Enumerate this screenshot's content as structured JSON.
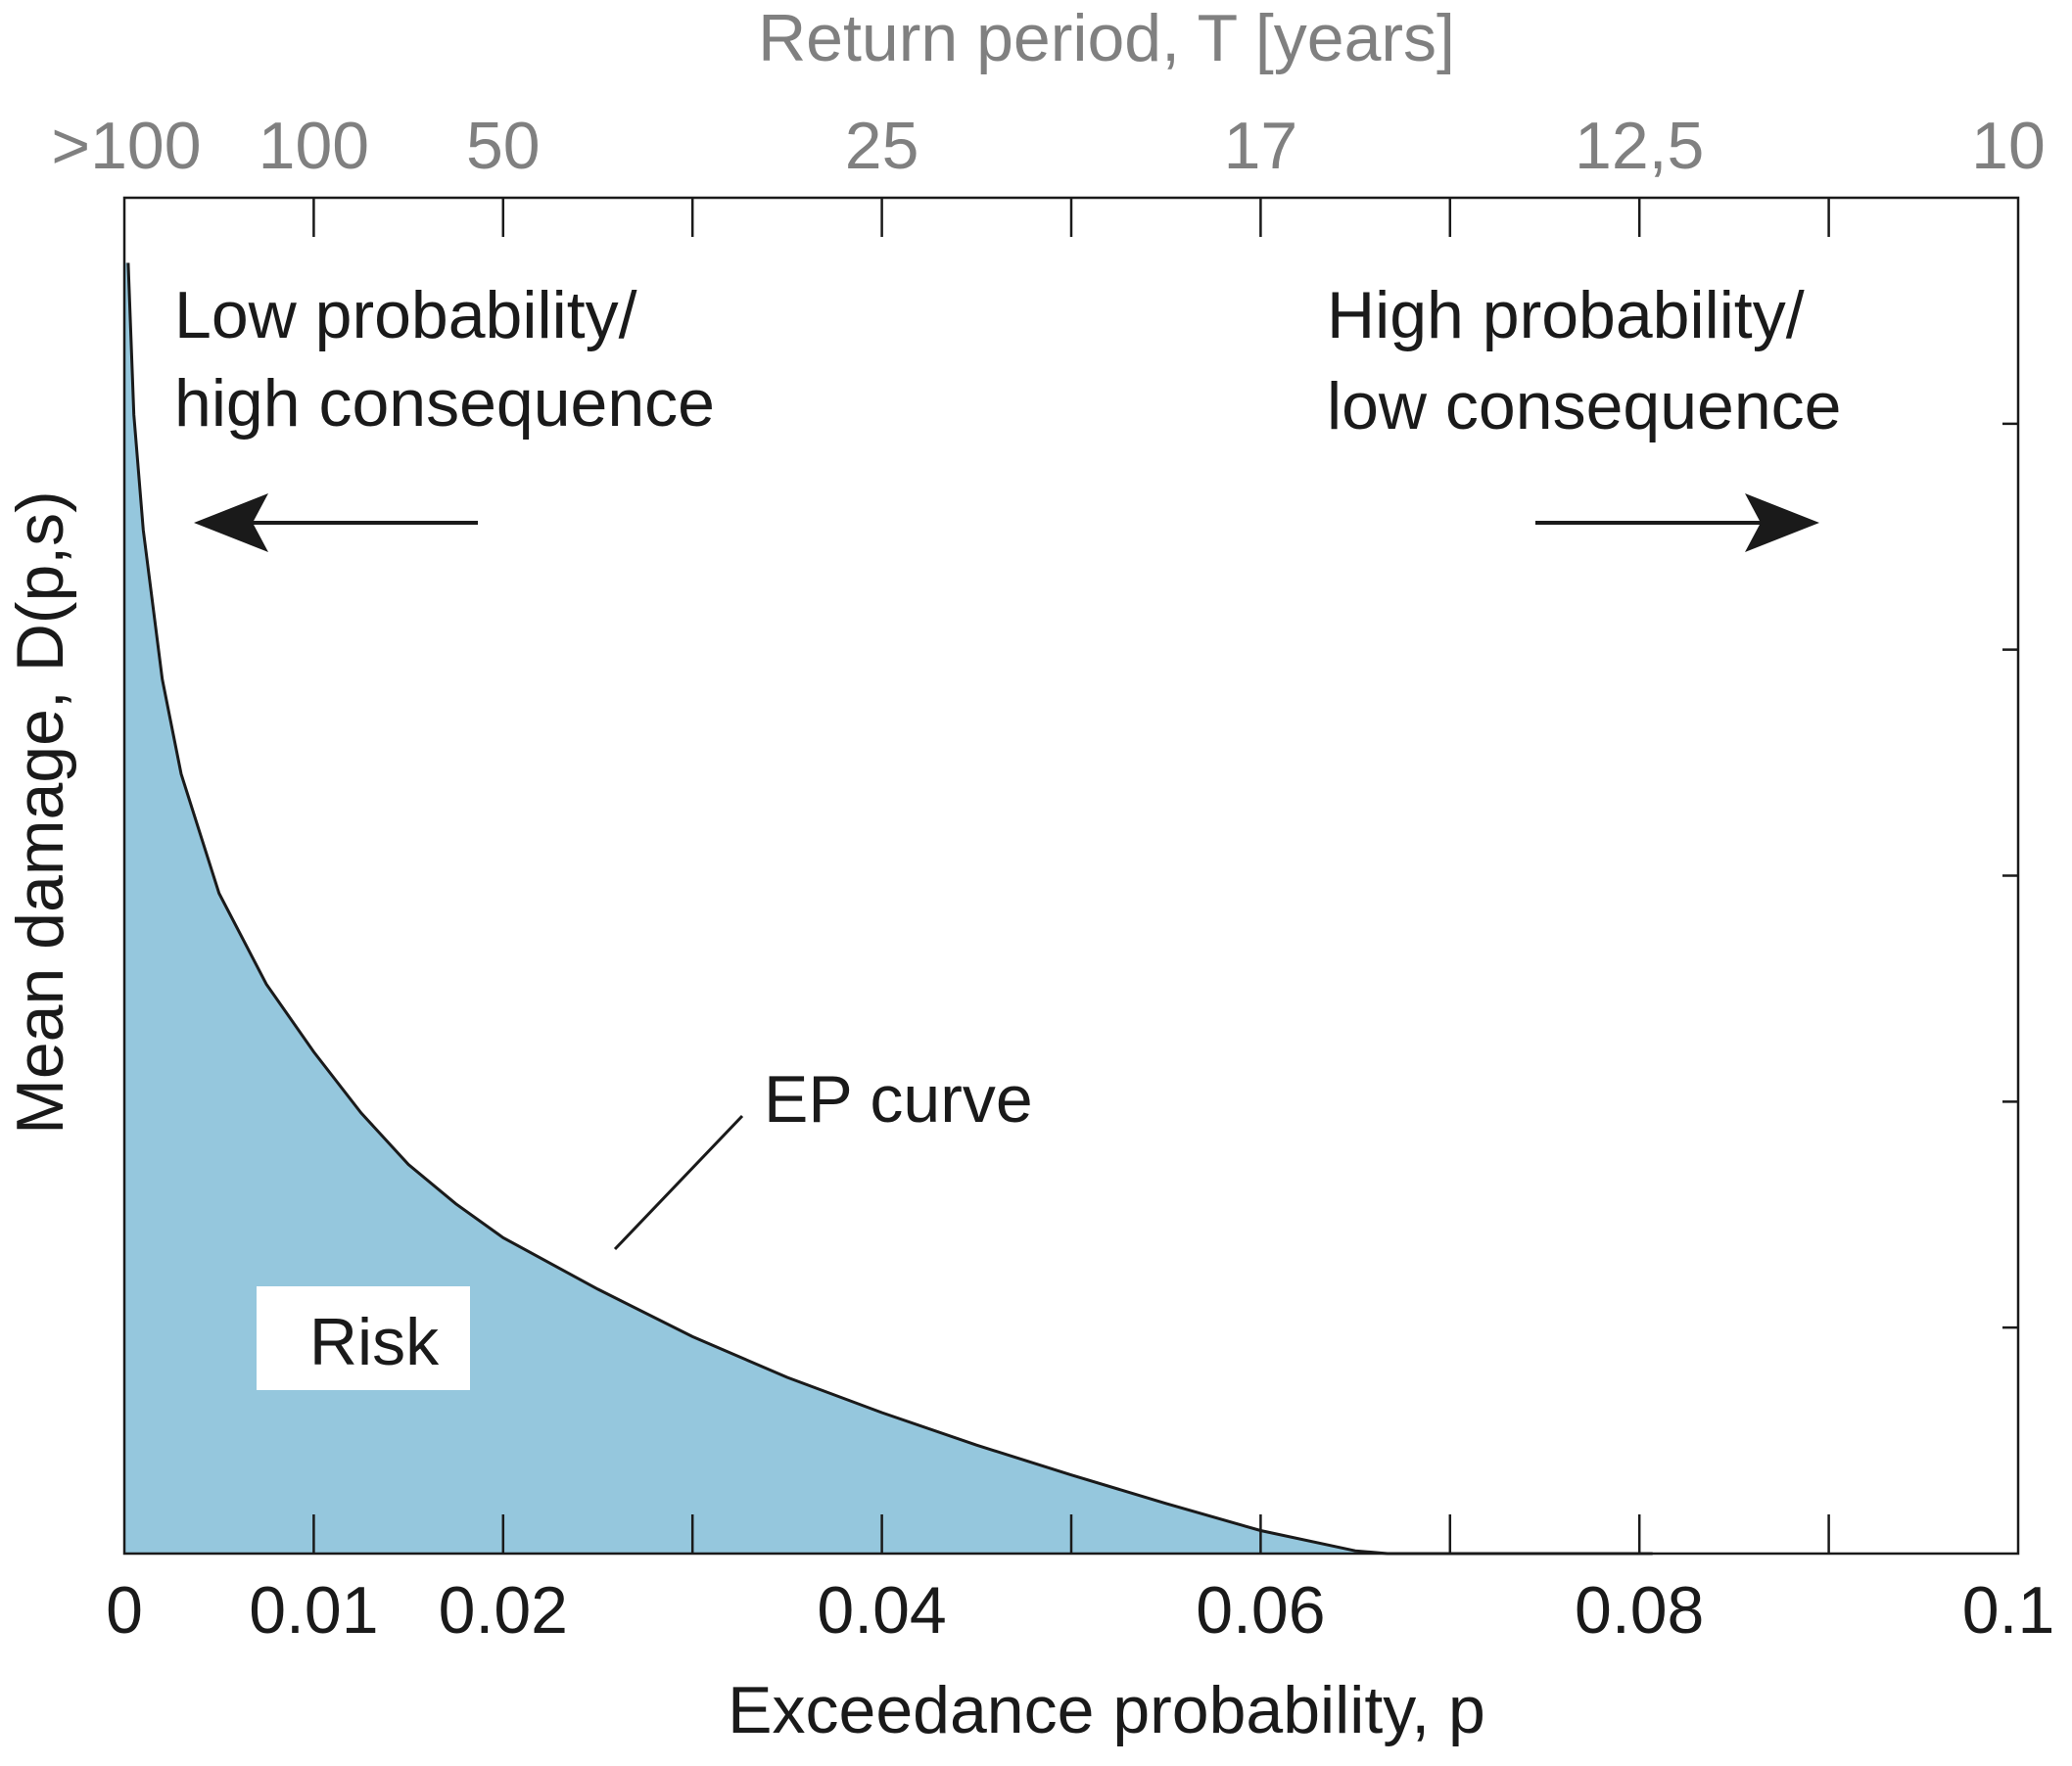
{
  "chart_data": {
    "type": "area",
    "xlabel": "Exceedance probability, p",
    "ylabel": "Mean damage, D(p,s)",
    "x2label": "Return period, T [years]",
    "xlim": [
      0,
      0.1
    ],
    "ylim": [
      0,
      1
    ],
    "x_ticks": [
      0,
      0.01,
      0.02,
      0.03,
      0.04,
      0.05,
      0.06,
      0.07,
      0.08,
      0.09,
      0.1
    ],
    "x_tick_labels": [
      {
        "x": 0,
        "label": "0"
      },
      {
        "x": 0.01,
        "label": "0.01"
      },
      {
        "x": 0.02,
        "label": "0.02"
      },
      {
        "x": 0.04,
        "label": "0.04"
      },
      {
        "x": 0.06,
        "label": "0.06"
      },
      {
        "x": 0.08,
        "label": "0.08"
      },
      {
        "x": 0.1,
        "label": "0.1"
      }
    ],
    "top_tick_labels": [
      {
        "x": 0,
        "label": ">100"
      },
      {
        "x": 0.01,
        "label": "100"
      },
      {
        "x": 0.02,
        "label": "50"
      },
      {
        "x": 0.04,
        "label": "25"
      },
      {
        "x": 0.06,
        "label": "17"
      },
      {
        "x": 0.08,
        "label": "12,5"
      },
      {
        "x": 0.1,
        "label": "10"
      }
    ],
    "y_ticks": [
      0.1667,
      0.3333,
      0.5,
      0.6667,
      0.8333
    ],
    "grid": false,
    "fill_color": "#95c7dd",
    "line_color": "#1a1a1a",
    "series": [
      {
        "x": [
          0.0002,
          0.0005,
          0.001,
          0.002,
          0.003,
          0.005,
          0.0075,
          0.01,
          0.0125,
          0.015,
          0.0175,
          0.02,
          0.025,
          0.03,
          0.035,
          0.04,
          0.045,
          0.05,
          0.055,
          0.06,
          0.065,
          0.0667,
          0.0807
        ],
        "y": [
          0.952,
          0.84,
          0.755,
          0.645,
          0.575,
          0.487,
          0.42,
          0.37,
          0.325,
          0.287,
          0.258,
          0.233,
          0.195,
          0.16,
          0.13,
          0.104,
          0.08,
          0.058,
          0.037,
          0.017,
          0.002,
          0.0,
          0.0
        ]
      }
    ],
    "annotations": {
      "low": [
        "Low probability/",
        "high consequence"
      ],
      "high": [
        "High probability/",
        "low consequence"
      ],
      "curve": "EP curve",
      "risk": "Risk"
    }
  }
}
